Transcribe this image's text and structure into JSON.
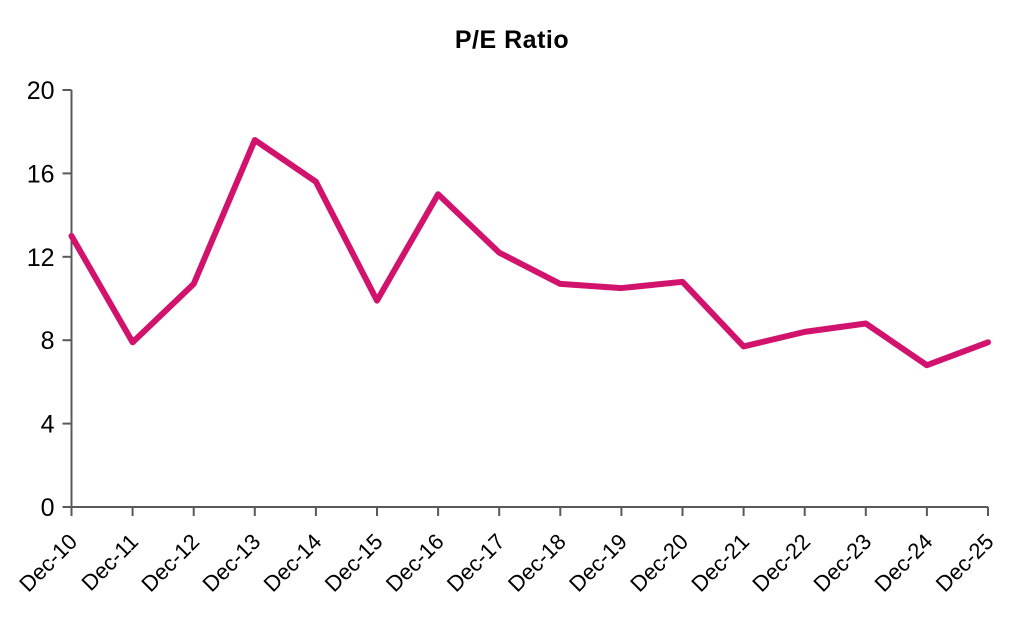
{
  "chart_data": {
    "type": "line",
    "title": "P/E Ratio",
    "categories": [
      "Dec-10",
      "Dec-11",
      "Dec-12",
      "Dec-13",
      "Dec-14",
      "Dec-15",
      "Dec-16",
      "Dec-17",
      "Dec-18",
      "Dec-19",
      "Dec-20",
      "Dec-21",
      "Dec-22",
      "Dec-23",
      "Dec-24",
      "Dec-25"
    ],
    "series": [
      {
        "name": "P/E Ratio",
        "values": [
          13.0,
          7.9,
          10.7,
          17.6,
          15.6,
          9.9,
          15.0,
          12.2,
          10.7,
          10.5,
          10.8,
          7.7,
          8.4,
          8.8,
          6.8,
          7.9
        ]
      }
    ],
    "xlabel": "",
    "ylabel": "",
    "ylim": [
      0,
      20
    ],
    "y_ticks": [
      0,
      4,
      8,
      12,
      16,
      20
    ],
    "grid": false,
    "legend_position": "none",
    "line_color": "#D1136E",
    "axis_color": "#595959",
    "text_color": "#000000"
  }
}
